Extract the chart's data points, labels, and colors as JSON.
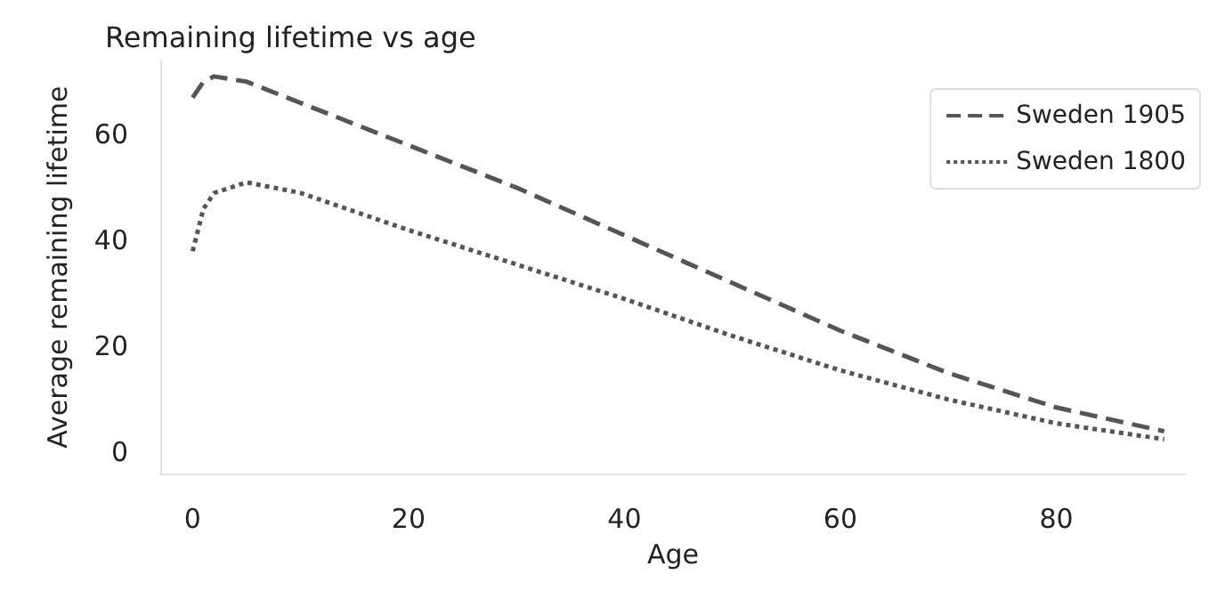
{
  "chart_data": {
    "type": "line",
    "title": "Remaining lifetime vs age",
    "xlabel": "Age",
    "ylabel": "Average remaining lifetime",
    "xlim": [
      -3,
      92
    ],
    "xticks": [
      0,
      20,
      40,
      60,
      80
    ],
    "ylim": [
      -4,
      74
    ],
    "yticks": [
      0,
      20,
      40,
      60
    ],
    "grid": false,
    "legend": "top right",
    "marker": "none",
    "series": [
      {
        "name": "Sweden 1905",
        "color": "#555555",
        "line_style": "dashed",
        "x": [
          0,
          1,
          2,
          5,
          10,
          20,
          30,
          40,
          50,
          60,
          70,
          80,
          90
        ],
        "values": [
          67,
          70,
          71,
          70,
          66,
          58,
          50,
          41,
          32,
          23,
          15,
          8.5,
          4
        ]
      },
      {
        "name": "Sweden 1800",
        "color": "#555555",
        "line_style": "dotted",
        "x": [
          0,
          1,
          2,
          5,
          10,
          20,
          30,
          40,
          50,
          60,
          70,
          80,
          90
        ],
        "values": [
          38,
          46,
          49,
          51,
          49,
          42,
          35.5,
          29,
          22,
          15.5,
          10,
          5.5,
          2.5
        ]
      }
    ]
  }
}
